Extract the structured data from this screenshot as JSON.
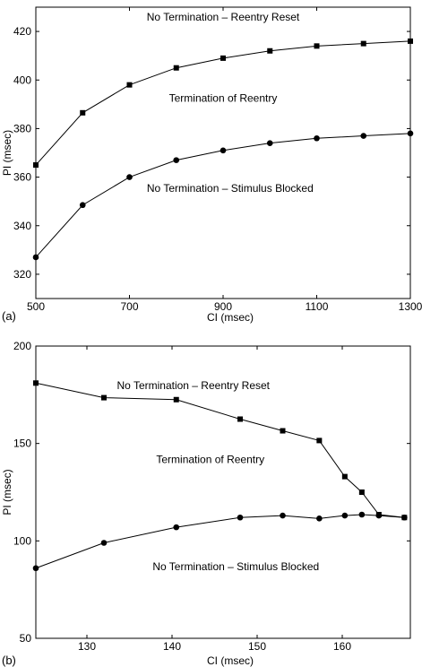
{
  "chart_data": [
    {
      "type": "line",
      "panel_label": "(a)",
      "xlabel": "CI (msec)",
      "ylabel": "PI (msec)",
      "xlim": [
        500,
        1300
      ],
      "ylim": [
        310,
        430
      ],
      "x_ticks": [
        500,
        700,
        900,
        1100,
        1300
      ],
      "y_ticks": [
        320,
        340,
        360,
        380,
        400,
        420
      ],
      "grid": false,
      "series": [
        {
          "marker": "square",
          "x": [
            500,
            600,
            700,
            800,
            900,
            1000,
            1100,
            1200,
            1300
          ],
          "values": [
            365,
            386.5,
            398,
            405,
            409,
            412,
            414,
            415,
            416
          ]
        },
        {
          "marker": "circle",
          "x": [
            500,
            600,
            700,
            800,
            900,
            1000,
            1100,
            1200,
            1300
          ],
          "values": [
            327,
            348.5,
            360,
            367,
            371,
            374,
            376,
            377,
            378
          ]
        }
      ],
      "annotations": [
        {
          "text": "No Termination – Reentry Reset",
          "x": 900,
          "y": 424.5
        },
        {
          "text": "Termination of Reentry",
          "x": 900,
          "y": 391
        },
        {
          "text": "No Termination – Stimulus Blocked",
          "x": 915,
          "y": 354
        }
      ]
    },
    {
      "type": "line",
      "panel_label": "(b)",
      "xlabel": "CI (msec)",
      "ylabel": "PI (msec)",
      "xlim": [
        124,
        168
      ],
      "ylim": [
        50,
        200
      ],
      "x_ticks": [
        130,
        140,
        150,
        160
      ],
      "y_ticks": [
        50,
        100,
        150,
        200
      ],
      "grid": false,
      "series": [
        {
          "marker": "square",
          "x": [
            124,
            132,
            140.5,
            148,
            153,
            157.3,
            160.3,
            162.3,
            164.3,
            167.3
          ],
          "values": [
            181,
            173.5,
            172.5,
            162.5,
            156.5,
            151.5,
            133,
            125,
            113.5,
            112
          ]
        },
        {
          "marker": "circle",
          "x": [
            124,
            132,
            140.5,
            148,
            153,
            157.3,
            160.3,
            162.3,
            164.3,
            167.3
          ],
          "values": [
            86,
            99,
            107,
            112,
            113,
            111.5,
            113,
            113.5,
            113,
            112
          ]
        }
      ],
      "annotations": [
        {
          "text": "No Termination – Reentry Reset",
          "x": 142.5,
          "y": 178
        },
        {
          "text": "Termination of Reentry",
          "x": 144.5,
          "y": 140
        },
        {
          "text": "No Termination – Stimulus Blocked",
          "x": 147.5,
          "y": 85
        }
      ]
    }
  ]
}
